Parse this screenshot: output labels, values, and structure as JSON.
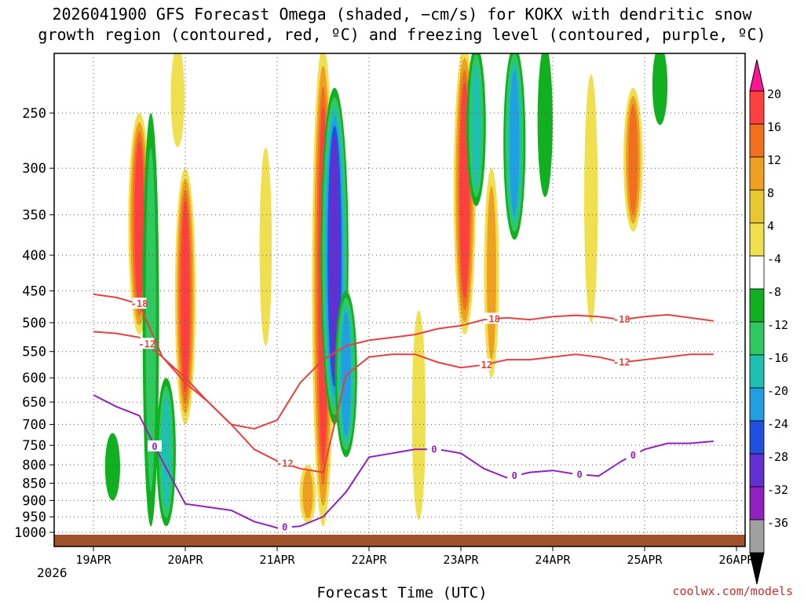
{
  "chart_data": {
    "type": "heatmap",
    "title_line1": "2026041900 GFS Forecast Omega (shaded, −cm/s) for KOKX with dendritic snow",
    "title_line2": "growth region (contoured, red, ºC) and freezing level (contoured, purple, ºC)",
    "xlabel": "Forecast Time (UTC)",
    "year_label": "2026",
    "watermark": "coolwx.com/models",
    "x_ticks": [
      "19APR",
      "20APR",
      "21APR",
      "22APR",
      "23APR",
      "24APR",
      "25APR",
      "26APR"
    ],
    "x_range_hours": [
      0,
      162
    ],
    "y_ticks": [
      250,
      300,
      350,
      400,
      450,
      500,
      550,
      600,
      650,
      700,
      750,
      800,
      850,
      900,
      950,
      1000
    ],
    "y_range_hpa": [
      200,
      1030
    ],
    "colorbar": {
      "labels": [
        20,
        16,
        12,
        8,
        4,
        -4,
        -8,
        -12,
        -16,
        -20,
        -24,
        -28,
        -32,
        -36
      ],
      "colors": [
        "#ff1493",
        "#ff4040",
        "#f07020",
        "#f0a020",
        "#e8c830",
        "#f0e050",
        "#ffffff",
        "#10b020",
        "#30c860",
        "#20c0b0",
        "#20a0e0",
        "#2050e0",
        "#6030d0",
        "#9020c0",
        "#a0a0a0",
        "#000000"
      ]
    },
    "contours": {
      "dgz_red_C": [
        -12,
        -18
      ],
      "freezing_level_purple_C": [
        0
      ],
      "series": [
        {
          "name": "-18",
          "color": "#e84040",
          "label_positions_hr": [
            12,
            104,
            138
          ],
          "x_hr": [
            0,
            6,
            12,
            18,
            24,
            30,
            36,
            42,
            48,
            54,
            60,
            66,
            72,
            78,
            84,
            90,
            96,
            102,
            108,
            114,
            120,
            126,
            132,
            138,
            144,
            150,
            156,
            162
          ],
          "p_hpa": [
            455,
            460,
            470,
            560,
            610,
            650,
            700,
            710,
            690,
            610,
            565,
            540,
            530,
            525,
            520,
            510,
            505,
            495,
            492,
            495,
            490,
            488,
            490,
            495,
            490,
            487,
            492,
            497
          ]
        },
        {
          "name": "-12",
          "color": "#e84040",
          "label_positions_hr": [
            14,
            50,
            102,
            138
          ],
          "x_hr": [
            0,
            6,
            12,
            18,
            24,
            30,
            36,
            42,
            48,
            54,
            60,
            66,
            72,
            78,
            84,
            90,
            96,
            102,
            108,
            114,
            120,
            126,
            132,
            138,
            144,
            150,
            156,
            162
          ],
          "p_hpa": [
            515,
            518,
            525,
            560,
            600,
            650,
            700,
            760,
            790,
            810,
            820,
            595,
            560,
            555,
            555,
            570,
            580,
            575,
            565,
            565,
            560,
            555,
            560,
            570,
            565,
            560,
            555,
            555
          ]
        },
        {
          "name": "0",
          "color": "#9020c0",
          "label_positions_hr": [
            16,
            50,
            89,
            110,
            127,
            141
          ],
          "x_hr": [
            0,
            6,
            12,
            18,
            24,
            30,
            36,
            42,
            48,
            54,
            60,
            66,
            72,
            78,
            84,
            90,
            96,
            102,
            108,
            114,
            120,
            126,
            132,
            138,
            144,
            150,
            156,
            162
          ],
          "p_hpa": [
            635,
            660,
            680,
            790,
            910,
            920,
            930,
            965,
            985,
            980,
            950,
            875,
            780,
            770,
            760,
            760,
            770,
            810,
            835,
            820,
            815,
            825,
            830,
            790,
            760,
            745,
            745,
            740
          ]
        }
      ]
    },
    "omega_blobs": [
      {
        "hr": 12,
        "p_top": 250,
        "p_bot": 520,
        "value": 18
      },
      {
        "hr": 24,
        "p_top": 300,
        "p_bot": 700,
        "value": 16
      },
      {
        "hr": 22,
        "p_top": 200,
        "p_bot": 280,
        "value": 6
      },
      {
        "hr": 15,
        "p_top": 250,
        "p_bot": 980,
        "value": -10
      },
      {
        "hr": 19,
        "p_top": 600,
        "p_bot": 980,
        "value": -14
      },
      {
        "hr": 60,
        "p_top": 200,
        "p_bot": 980,
        "value": 18
      },
      {
        "hr": 63,
        "p_top": 230,
        "p_bot": 700,
        "value": -26
      },
      {
        "hr": 66,
        "p_top": 450,
        "p_bot": 780,
        "value": -18
      },
      {
        "hr": 97,
        "p_top": 200,
        "p_bot": 520,
        "value": 18
      },
      {
        "hr": 100,
        "p_top": 200,
        "p_bot": 340,
        "value": -14
      },
      {
        "hr": 104,
        "p_top": 300,
        "p_bot": 600,
        "value": 8
      },
      {
        "hr": 110,
        "p_top": 200,
        "p_bot": 380,
        "value": -18
      },
      {
        "hr": 118,
        "p_top": 200,
        "p_bot": 330,
        "value": -8
      },
      {
        "hr": 130,
        "p_top": 220,
        "p_bot": 500,
        "value": 6
      },
      {
        "hr": 141,
        "p_top": 230,
        "p_bot": 370,
        "value": 14
      },
      {
        "hr": 148,
        "p_top": 200,
        "p_bot": 260,
        "value": -8
      },
      {
        "hr": 85,
        "p_top": 480,
        "p_bot": 960,
        "value": 6
      },
      {
        "hr": 5,
        "p_top": 720,
        "p_bot": 900,
        "value": -8
      },
      {
        "hr": 45,
        "p_top": 280,
        "p_bot": 540,
        "value": 4
      },
      {
        "hr": 56,
        "p_top": 800,
        "p_bot": 970,
        "value": 10
      }
    ]
  }
}
